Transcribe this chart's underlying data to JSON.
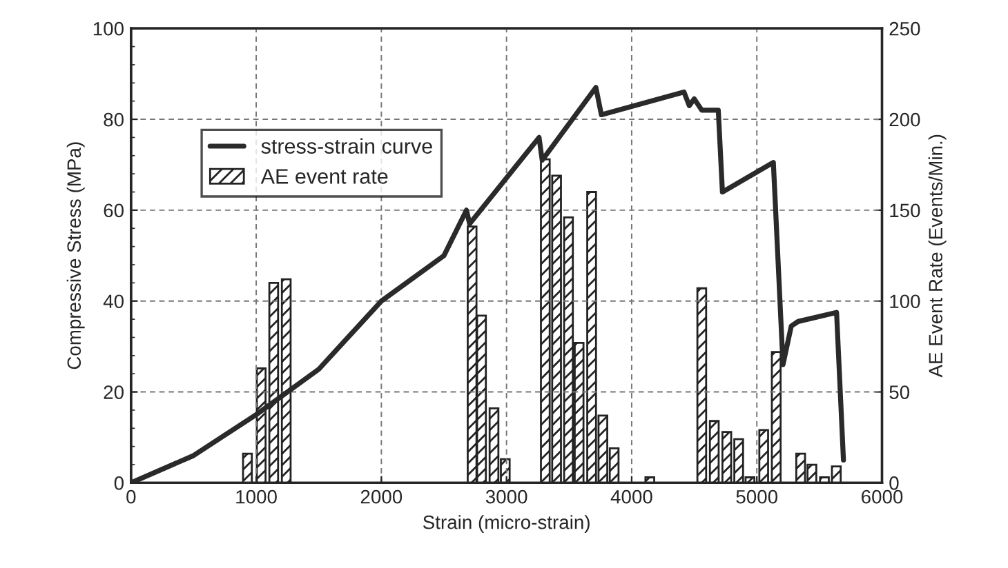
{
  "chart_data": {
    "type": "line",
    "xlabel": "Strain (micro-strain)",
    "ylabel": "Compressive Stress (MPa)",
    "y2label": "AE Event Rate (Events/Min.)",
    "xlim": [
      0,
      6000
    ],
    "xticks": [
      0,
      1000,
      2000,
      3000,
      4000,
      5000,
      6000
    ],
    "ylim": [
      0,
      100
    ],
    "yticks": [
      0,
      20,
      40,
      60,
      80,
      100
    ],
    "y2lim": [
      0,
      250
    ],
    "y2ticks": [
      0,
      50,
      100,
      150,
      200,
      250
    ],
    "grid": true,
    "legend": "top left",
    "line_style": "solid",
    "marker": "none",
    "series": [
      {
        "name": "stress-strain curve",
        "color": "#2a2a2a",
        "x": [
          0,
          500,
          1000,
          1500,
          2000,
          2500,
          2680,
          2705,
          3260,
          3285,
          3714,
          3758,
          4418,
          4460,
          4500,
          4560,
          4692,
          4725,
          5132,
          5209,
          5275,
          5330,
          5637,
          5692
        ],
        "values": [
          0,
          6,
          15,
          25,
          40,
          50,
          60,
          57,
          76,
          71,
          87,
          81,
          86,
          83,
          84.5,
          82,
          82,
          64,
          70.5,
          26,
          34.5,
          35.5,
          37.5,
          5
        ]
      },
      {
        "name": "AE event rate",
        "type": "bar",
        "axis": "y2",
        "color": "#222222",
        "x": [
          930,
          1040,
          1140,
          1240,
          2725,
          2800,
          2900,
          2990,
          3310,
          3400,
          3495,
          3580,
          3680,
          3770,
          3860,
          4145,
          4240,
          4340,
          4440,
          4560,
          4660,
          4760,
          4855,
          4945,
          5055,
          5155,
          5350,
          5440,
          5540,
          5635
        ],
        "values": [
          16,
          63,
          110,
          112,
          141,
          92,
          41,
          13,
          178,
          169,
          146,
          77,
          160,
          37,
          19,
          3,
          null,
          null,
          null,
          107,
          34,
          28,
          24,
          3,
          29,
          72,
          16,
          10,
          3,
          9
        ]
      }
    ]
  }
}
